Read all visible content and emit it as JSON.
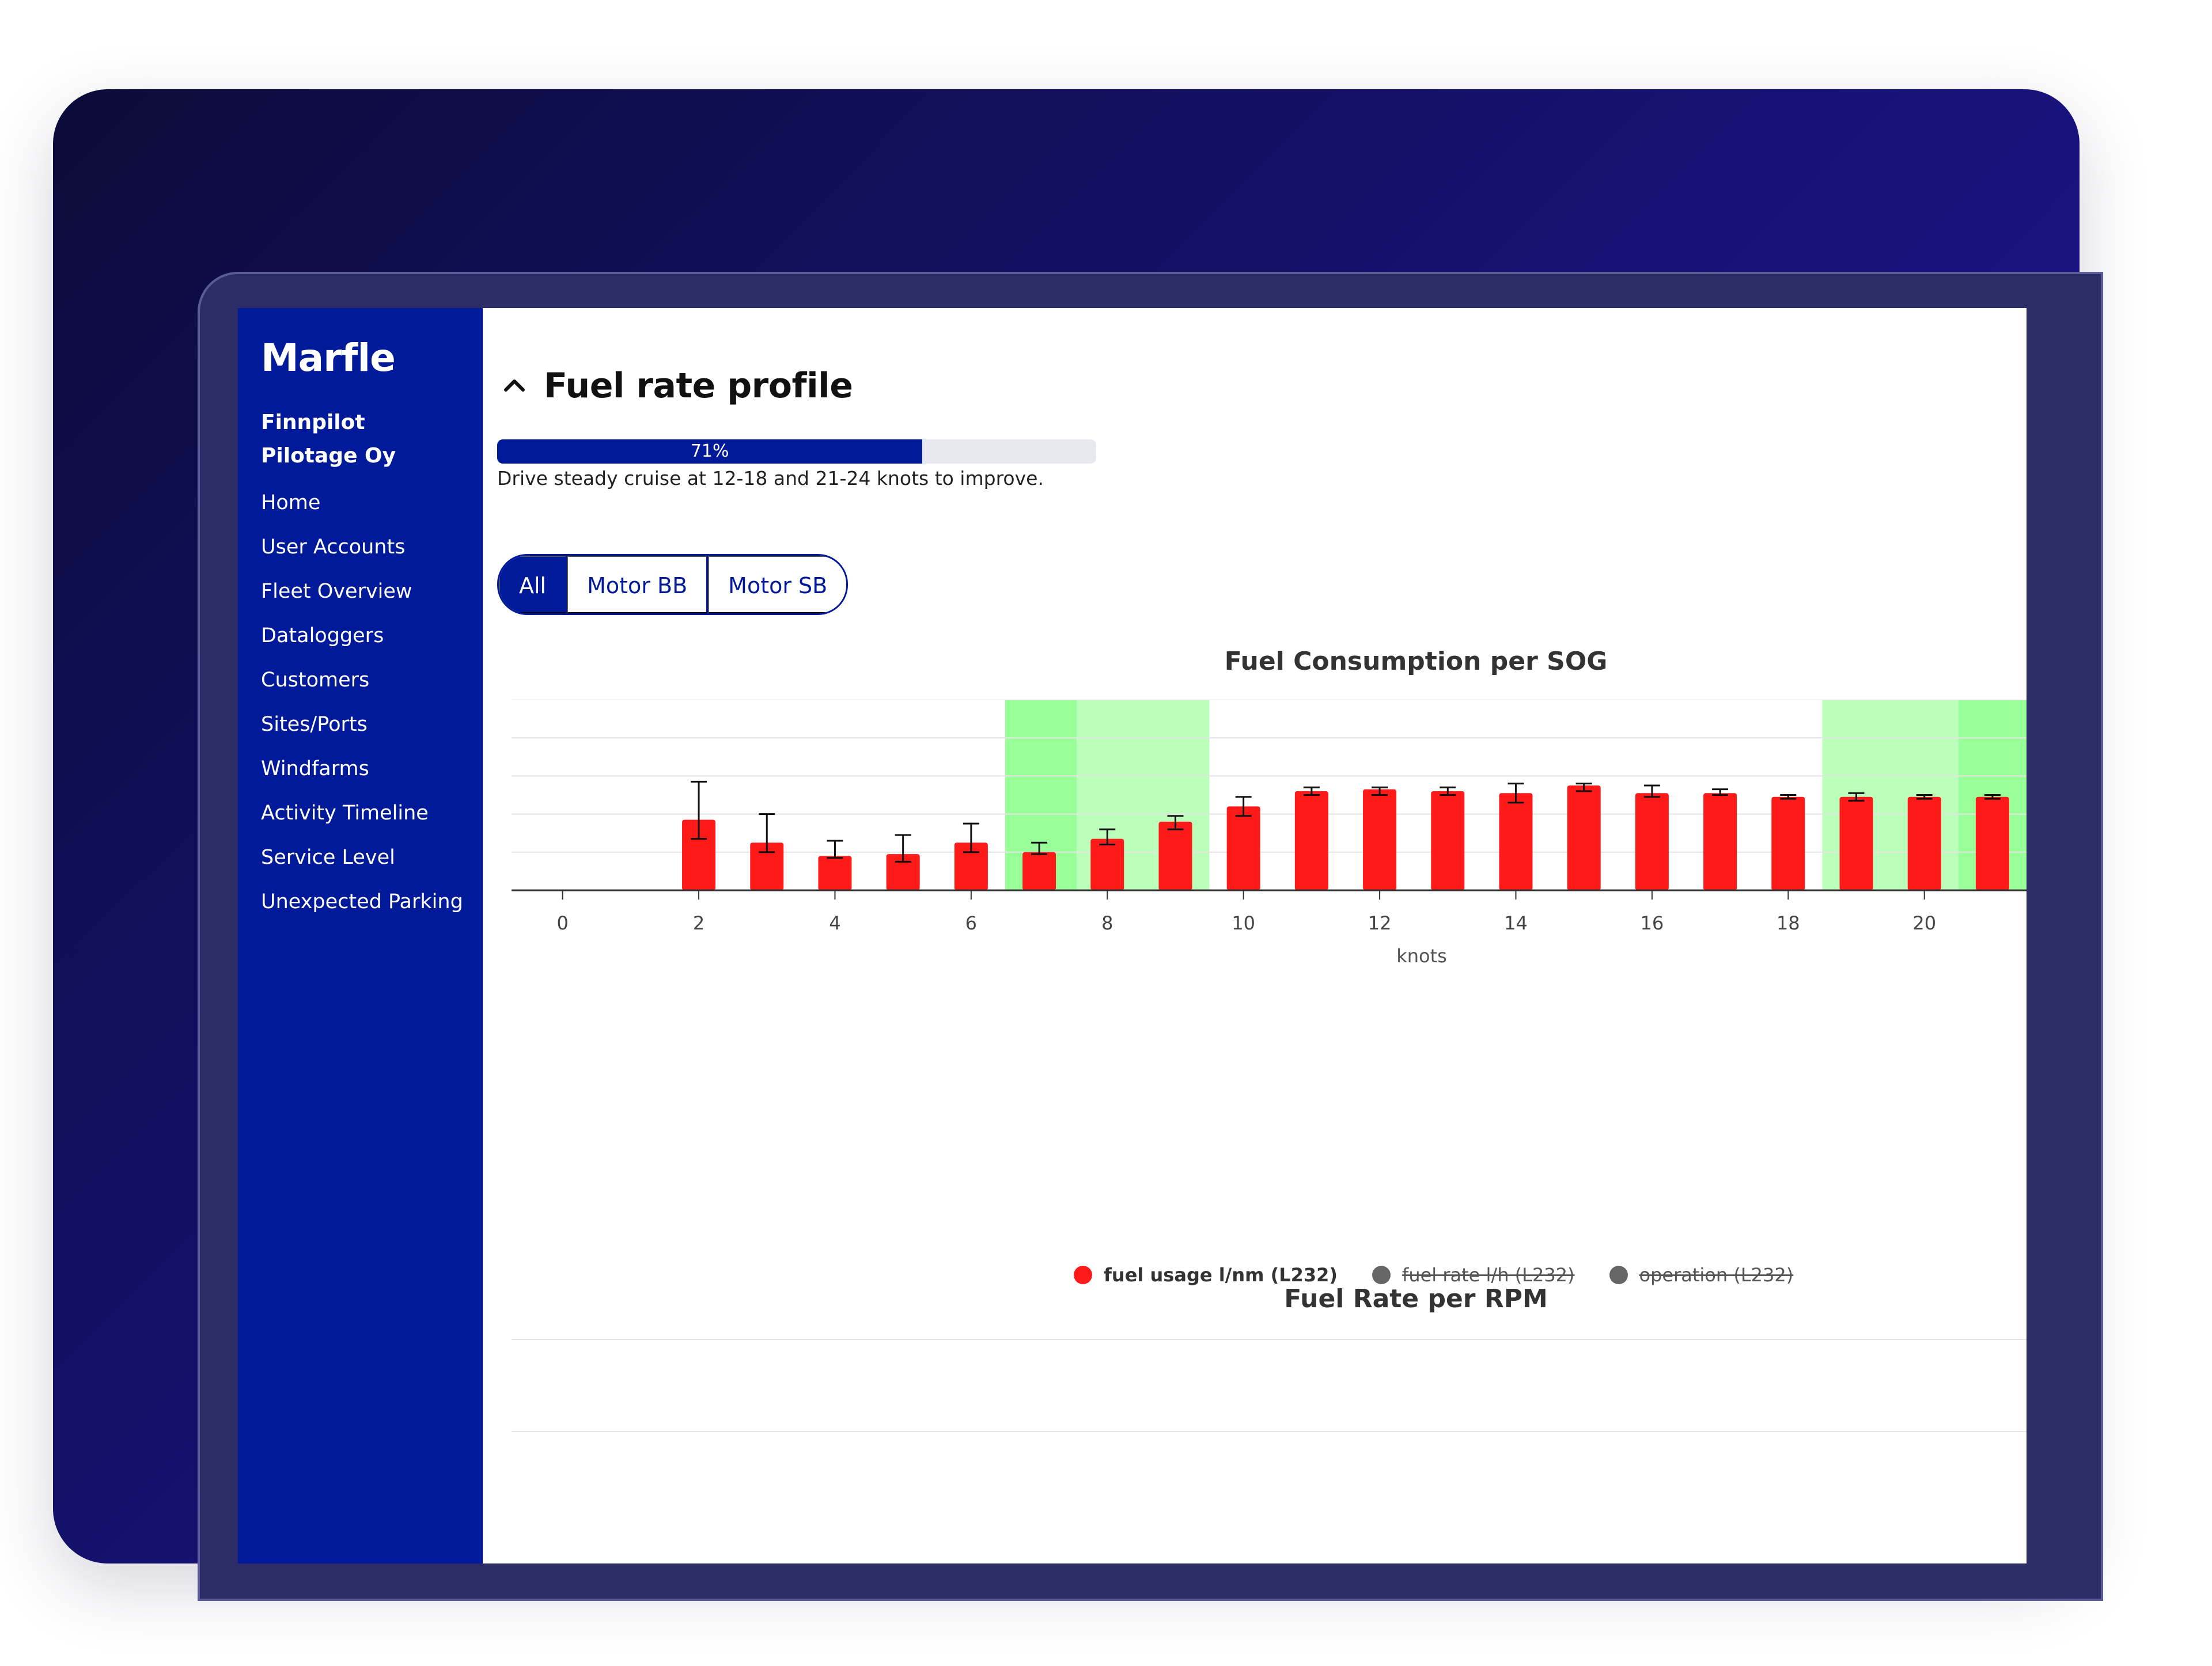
{
  "sidebar": {
    "brand": "Marfle",
    "organization": "Finnpilot Pilotage Oy",
    "items": [
      {
        "label": "Home"
      },
      {
        "label": "User Accounts"
      },
      {
        "label": "Fleet Overview"
      },
      {
        "label": "Dataloggers"
      },
      {
        "label": "Customers"
      },
      {
        "label": "Sites/Ports"
      },
      {
        "label": "Windfarms"
      },
      {
        "label": "Activity Timeline"
      },
      {
        "label": "Service Level"
      },
      {
        "label": "Unexpected Parking"
      }
    ]
  },
  "main": {
    "section_title": "Fuel rate profile",
    "progress": {
      "value": 71,
      "label": "71%"
    },
    "hint": "Drive steady cruise at 12-18 and 21-24 knots to improve.",
    "filters": {
      "options": [
        "All",
        "Motor BB",
        "Motor SB"
      ],
      "selected": "All"
    }
  },
  "colors": {
    "sidebar": "#001a99",
    "bar": "#ff1a1a",
    "band_light": "#bbffbb",
    "band_dark": "#99ff99",
    "legend_off": "#666666"
  },
  "chart_data": [
    {
      "type": "bar",
      "title": "Fuel Consumption per SOG",
      "xlabel": "knots",
      "ylabel": "",
      "x_ticks": [
        0,
        2,
        4,
        6,
        8,
        10,
        12,
        14,
        16,
        18,
        20
      ],
      "xlim": [
        -0.75,
        21.5
      ],
      "ylim": [
        0,
        5
      ],
      "grid": true,
      "categories": [
        2,
        3,
        4,
        5,
        6,
        7,
        8,
        9,
        10,
        11,
        12,
        13,
        14,
        15,
        16,
        17,
        18,
        19,
        20,
        21
      ],
      "series": [
        {
          "name": "fuel usage l/nm (L232)",
          "values": [
            1.85,
            1.25,
            0.9,
            0.95,
            1.25,
            1.0,
            1.35,
            1.8,
            2.2,
            2.6,
            2.65,
            2.6,
            2.55,
            2.75,
            2.55,
            2.55,
            2.45,
            2.45,
            2.45,
            2.45
          ],
          "error_low": [
            1.35,
            1.0,
            0.85,
            0.75,
            1.0,
            0.95,
            1.2,
            1.6,
            1.95,
            2.5,
            2.5,
            2.5,
            2.3,
            2.6,
            2.45,
            2.5,
            2.4,
            2.35,
            2.4,
            2.4
          ],
          "error_high": [
            2.85,
            2.0,
            1.3,
            1.45,
            1.75,
            1.25,
            1.6,
            1.95,
            2.45,
            2.7,
            2.7,
            2.7,
            2.8,
            2.8,
            2.75,
            2.65,
            2.5,
            2.55,
            2.5,
            2.5
          ],
          "visible": true
        },
        {
          "name": "fuel rate l/h (L232)",
          "visible": false
        },
        {
          "name": "operation (L232)",
          "visible": false
        }
      ],
      "highlight_bands": [
        {
          "from": 6.5,
          "to": 7.55,
          "shade": "dark"
        },
        {
          "from": 7.55,
          "to": 9.5,
          "shade": "light"
        },
        {
          "from": 18.5,
          "to": 20.5,
          "shade": "light"
        },
        {
          "from": 20.5,
          "to": 21.5,
          "shade": "dark"
        }
      ],
      "legend_position": "bottom"
    },
    {
      "type": "line",
      "title": "Fuel Rate per RPM",
      "grid": true
    }
  ]
}
